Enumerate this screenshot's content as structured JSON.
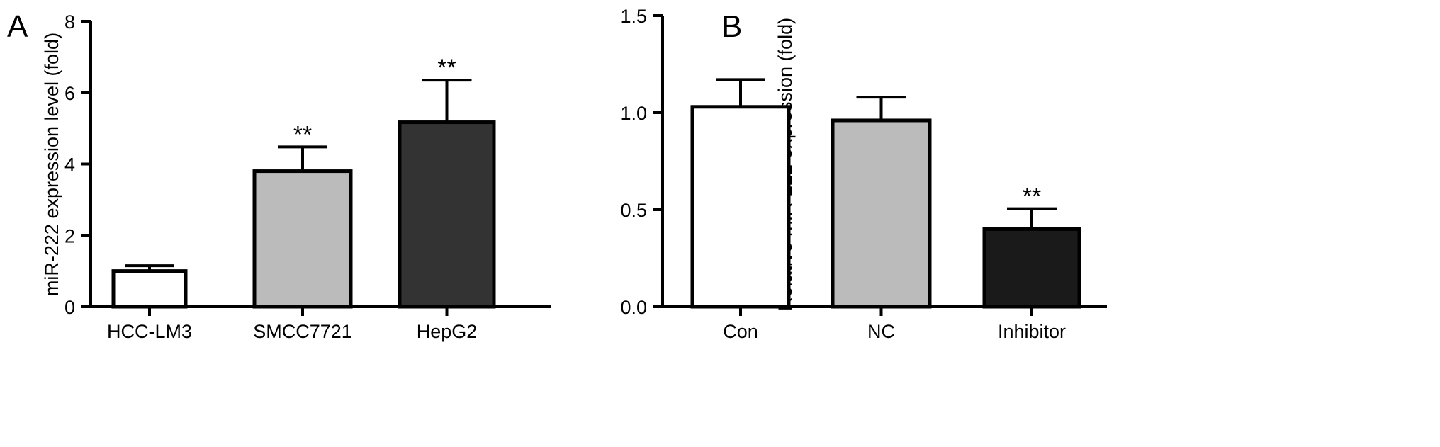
{
  "chart_data": [
    {
      "panel": "A",
      "type": "bar",
      "categories": [
        "HCC-LM3",
        "SMCC7721",
        "HepG2"
      ],
      "values": [
        1.0,
        3.8,
        5.17
      ],
      "error": [
        0.15,
        0.68,
        1.18
      ],
      "significance": [
        "",
        "**",
        "**"
      ],
      "bar_colors": [
        "#ffffff",
        "#bbbbbb",
        "#333333"
      ],
      "title": "",
      "xlabel": "",
      "ylabel": "miR-222 expression  level (fold)",
      "ylim": [
        0,
        8
      ],
      "yticks": [
        0,
        2,
        4,
        6,
        8
      ],
      "ytick_labels": [
        "0",
        "2",
        "4",
        "6",
        "8"
      ]
    },
    {
      "panel": "B",
      "type": "bar",
      "categories": [
        "Con",
        "NC",
        "Inhibitor"
      ],
      "values": [
        1.03,
        0.96,
        0.4
      ],
      "error": [
        0.14,
        0.12,
        0.105
      ],
      "significance": [
        "",
        "",
        "**"
      ],
      "bar_colors": [
        "#ffffff",
        "#bbbbbb",
        "#1a1a1a"
      ],
      "title": "",
      "xlabel": "",
      "ylabel": "Relative miR-222 expression (fold)",
      "ylim": [
        0,
        1.5
      ],
      "yticks": [
        0,
        0.5,
        1.0,
        1.5
      ],
      "ytick_labels": [
        "0.0",
        "0.5",
        "1.0",
        "1.5"
      ]
    }
  ]
}
